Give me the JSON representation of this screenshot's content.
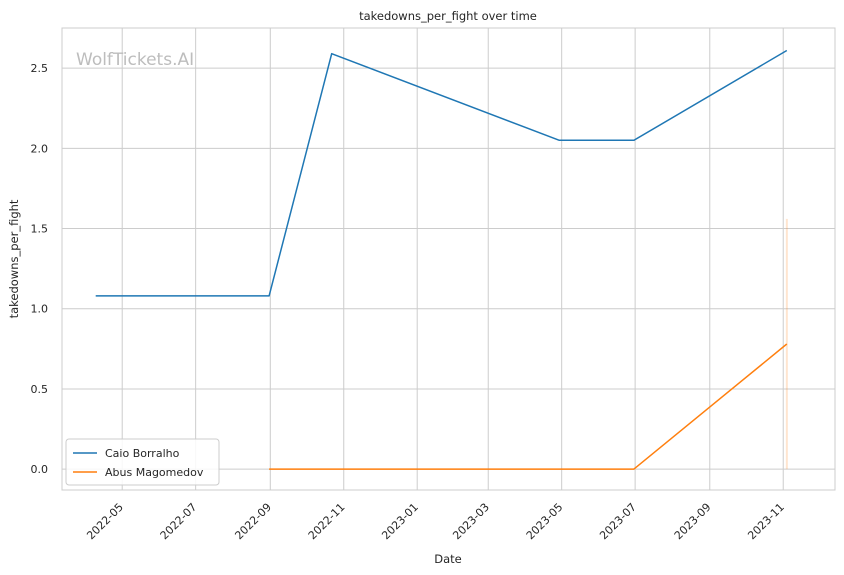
{
  "chart_data": {
    "type": "line",
    "title": "takedowns_per_fight over time",
    "xlabel": "Date",
    "ylabel": "takedowns_per_fight",
    "watermark": "WolfTickets.AI",
    "xlim": [
      "2022-03-12",
      "2023-12-14"
    ],
    "ylim": [
      -0.13,
      2.75
    ],
    "x_ticks": [
      "2022-05-01",
      "2022-07-01",
      "2022-09-01",
      "2022-11-01",
      "2023-01-01",
      "2023-03-01",
      "2023-05-01",
      "2023-07-01",
      "2023-09-01",
      "2023-11-01"
    ],
    "x_tick_labels": [
      "2022-05",
      "2022-07",
      "2022-09",
      "2022-11",
      "2023-01",
      "2023-03",
      "2023-05",
      "2023-07",
      "2023-09",
      "2023-11"
    ],
    "y_ticks": [
      0.0,
      0.5,
      1.0,
      1.5,
      2.0,
      2.5
    ],
    "y_tick_labels": [
      "0.0",
      "0.5",
      "1.0",
      "1.5",
      "2.0",
      "2.5"
    ],
    "grid": true,
    "legend_position": "lower-left",
    "series": [
      {
        "name": "Caio Borralho",
        "color": "#1f77b4",
        "points": [
          {
            "x": "2022-04-09",
            "y": 1.08
          },
          {
            "x": "2022-08-31",
            "y": 1.08
          },
          {
            "x": "2022-10-22",
            "y": 2.59
          },
          {
            "x": "2023-04-29",
            "y": 2.05
          },
          {
            "x": "2023-06-30",
            "y": 2.05
          },
          {
            "x": "2023-11-04",
            "y": 2.61
          }
        ]
      },
      {
        "name": "Abus Magomedov",
        "color": "#ff7f0e",
        "points": [
          {
            "x": "2022-08-31",
            "y": 0.0
          },
          {
            "x": "2023-06-30",
            "y": 0.0
          },
          {
            "x": "2023-11-04",
            "y": 0.78
          }
        ]
      }
    ],
    "band": {
      "x": "2023-11-04",
      "y_low": 0.0,
      "y_high": 1.56,
      "color": "#ff7f0e"
    }
  }
}
